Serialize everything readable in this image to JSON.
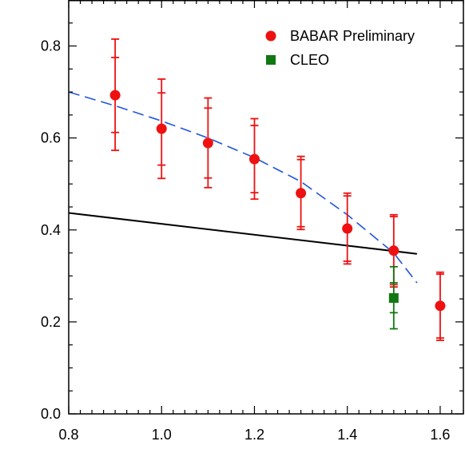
{
  "chart_data": {
    "type": "scatter",
    "title": "",
    "xlabel": "",
    "ylabel": "",
    "xlim": [
      0.8,
      1.65
    ],
    "ylim": [
      0.0,
      0.9
    ],
    "x_ticks": [
      0.8,
      1.0,
      1.2,
      1.4,
      1.6
    ],
    "x_tick_labels": [
      "0.8",
      "1.0",
      "1.2",
      "1.4",
      "1.6"
    ],
    "y_ticks": [
      0.0,
      0.2,
      0.4,
      0.6,
      0.8
    ],
    "y_tick_labels": [
      "0.0",
      "0.2",
      "0.4",
      "0.6",
      "0.8"
    ],
    "grid": false,
    "legend_position": "top-right",
    "series": [
      {
        "name": "BABAR Preliminary",
        "marker": "circle",
        "color": "#ee1111",
        "points": [
          {
            "x": 0.9,
            "y": 0.693,
            "err_inner": [
              0.612,
              0.775
            ],
            "err_outer": [
              0.573,
              0.815
            ]
          },
          {
            "x": 1.0,
            "y": 0.62,
            "err_inner": [
              0.541,
              0.698
            ],
            "err_outer": [
              0.512,
              0.728
            ]
          },
          {
            "x": 1.1,
            "y": 0.589,
            "err_inner": [
              0.513,
              0.665
            ],
            "err_outer": [
              0.492,
              0.687
            ]
          },
          {
            "x": 1.2,
            "y": 0.554,
            "err_inner": [
              0.481,
              0.627
            ],
            "err_outer": [
              0.467,
              0.642
            ]
          },
          {
            "x": 1.3,
            "y": 0.48,
            "err_inner": [
              0.407,
              0.553
            ],
            "err_outer": [
              0.401,
              0.56
            ]
          },
          {
            "x": 1.4,
            "y": 0.403,
            "err_inner": [
              0.332,
              0.474
            ],
            "err_outer": [
              0.326,
              0.48
            ]
          },
          {
            "x": 1.5,
            "y": 0.355,
            "err_inner": [
              0.281,
              0.429
            ],
            "err_outer": [
              0.276,
              0.433
            ]
          },
          {
            "x": 1.6,
            "y": 0.235,
            "err_inner": [
              0.165,
              0.304
            ],
            "err_outer": [
              0.16,
              0.308
            ]
          }
        ]
      },
      {
        "name": "CLEO",
        "marker": "square",
        "color": "#117711",
        "points": [
          {
            "x": 1.5,
            "y": 0.252,
            "err_inner": [
              0.22,
              0.285
            ],
            "err_outer": [
              0.185,
              0.32
            ]
          }
        ]
      }
    ],
    "curves": [
      {
        "style": "dashed",
        "color": "#2255dd",
        "points": [
          [
            0.8,
            0.7
          ],
          [
            0.9,
            0.67
          ],
          [
            1.0,
            0.637
          ],
          [
            1.1,
            0.6
          ],
          [
            1.2,
            0.557
          ],
          [
            1.3,
            0.505
          ],
          [
            1.4,
            0.433
          ],
          [
            1.5,
            0.35
          ],
          [
            1.55,
            0.285
          ]
        ]
      },
      {
        "style": "solid",
        "color": "#000000",
        "points": [
          [
            0.8,
            0.437
          ],
          [
            1.55,
            0.348
          ]
        ]
      }
    ]
  }
}
